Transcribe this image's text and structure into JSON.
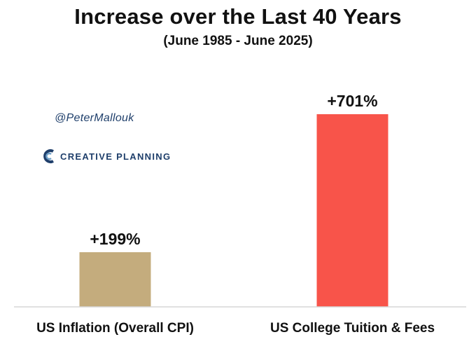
{
  "chart_data": {
    "type": "bar",
    "title": "Increase over the Last 40 Years",
    "subtitle": "(June 1985 - June 2025)",
    "categories": [
      "US Inflation (Overall CPI)",
      "US College Tuition & Fees"
    ],
    "values": [
      199,
      701
    ],
    "value_labels": [
      "+199%",
      "+701%"
    ],
    "colors": [
      "#c4ac7d",
      "#f8544a"
    ],
    "ylim": [
      0,
      780
    ],
    "grid": false,
    "xlabel": "",
    "ylabel": ""
  },
  "watermark": {
    "handle": "@PeterMallouk",
    "brand": "CREATIVE PLANNING",
    "brand_icon": "creative-planning-logo-icon"
  }
}
